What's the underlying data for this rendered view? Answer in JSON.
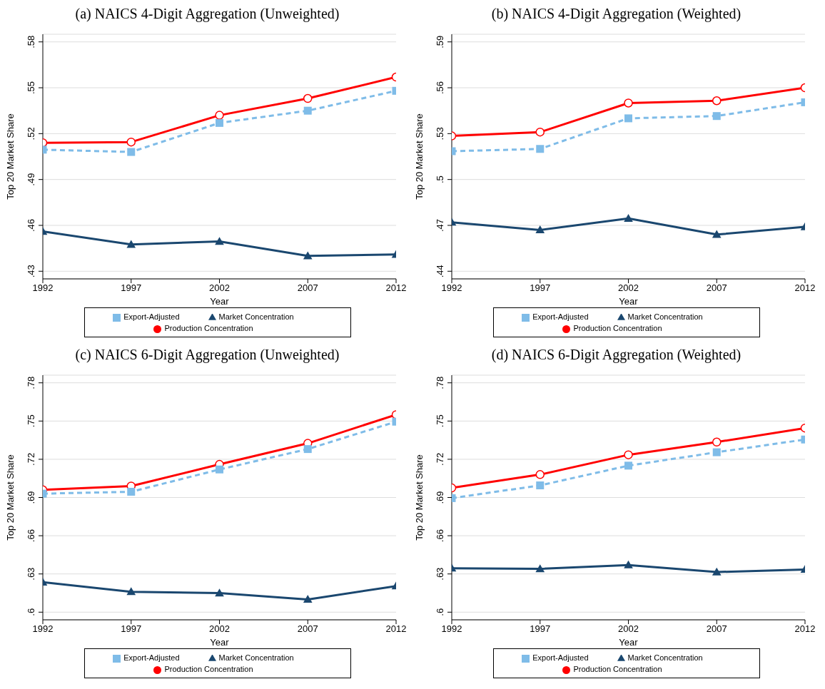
{
  "chart_data": [
    {
      "type": "line",
      "title": "(a) NAICS 4-Digit Aggregation (Unweighted)",
      "xlabel": "Year",
      "ylabel": "Top 20 Market Share",
      "x": [
        1992,
        1997,
        2002,
        2007,
        2012
      ],
      "xlim": [
        1992,
        2012
      ],
      "xticks": [
        1992,
        1997,
        2002,
        2007,
        2012
      ],
      "ylim": [
        0.425,
        0.585
      ],
      "yticks": [
        {
          "value": 0.43,
          "label": ".43"
        },
        {
          "value": 0.46,
          "label": ".46"
        },
        {
          "value": 0.49,
          "label": ".49"
        },
        {
          "value": 0.52,
          "label": ".52"
        },
        {
          "value": 0.55,
          "label": ".55"
        },
        {
          "value": 0.58,
          "label": ".58"
        }
      ],
      "grid": "y",
      "legend": "bottom",
      "series": [
        {
          "name": "Production Concentration",
          "color": "#ff0000",
          "marker": "circle",
          "line_style": "solid",
          "values": [
            0.514,
            0.5145,
            0.532,
            0.543,
            0.557
          ]
        },
        {
          "name": "Export-Adjusted",
          "color": "#7fbce8",
          "marker": "square",
          "line_style": "dashed",
          "values": [
            0.5095,
            0.508,
            0.527,
            0.535,
            0.548
          ]
        },
        {
          "name": "Market Concentration",
          "color": "#1a476f",
          "marker": "triangle",
          "line_style": "solid",
          "values": [
            0.456,
            0.4475,
            0.4495,
            0.44,
            0.441
          ]
        }
      ]
    },
    {
      "type": "line",
      "title": "(b) NAICS 4-Digit Aggregation (Weighted)",
      "xlabel": "Year",
      "ylabel": "Top 20 Market Share",
      "x": [
        1992,
        1997,
        2002,
        2007,
        2012
      ],
      "xlim": [
        1992,
        2012
      ],
      "xticks": [
        1992,
        1997,
        2002,
        2007,
        2012
      ],
      "ylim": [
        0.435,
        0.595
      ],
      "yticks": [
        {
          "value": 0.44,
          "label": ".44"
        },
        {
          "value": 0.47,
          "label": ".47"
        },
        {
          "value": 0.5,
          "label": ".5"
        },
        {
          "value": 0.53,
          "label": ".53"
        },
        {
          "value": 0.56,
          "label": ".56"
        },
        {
          "value": 0.59,
          "label": ".59"
        }
      ],
      "grid": "y",
      "legend": "bottom",
      "series": [
        {
          "name": "Production Concentration",
          "color": "#ff0000",
          "marker": "circle",
          "line_style": "solid",
          "values": [
            0.5285,
            0.531,
            0.55,
            0.5515,
            0.56
          ]
        },
        {
          "name": "Export-Adjusted",
          "color": "#7fbce8",
          "marker": "square",
          "line_style": "dashed",
          "values": [
            0.5185,
            0.52,
            0.54,
            0.5415,
            0.5505
          ]
        },
        {
          "name": "Market Concentration",
          "color": "#1a476f",
          "marker": "triangle",
          "line_style": "solid",
          "values": [
            0.472,
            0.467,
            0.4745,
            0.464,
            0.469
          ]
        }
      ]
    },
    {
      "type": "line",
      "title": "(c) NAICS 6-Digit Aggregation (Unweighted)",
      "xlabel": "Year",
      "ylabel": "Top 20 Market Share",
      "x": [
        1992,
        1997,
        2002,
        2007,
        2012
      ],
      "xlim": [
        1992,
        2012
      ],
      "xticks": [
        1992,
        1997,
        2002,
        2007,
        2012
      ],
      "ylim": [
        0.594,
        0.786
      ],
      "yticks": [
        {
          "value": 0.6,
          "label": ".6"
        },
        {
          "value": 0.63,
          "label": ".63"
        },
        {
          "value": 0.66,
          "label": ".66"
        },
        {
          "value": 0.69,
          "label": ".69"
        },
        {
          "value": 0.72,
          "label": ".72"
        },
        {
          "value": 0.75,
          "label": ".75"
        },
        {
          "value": 0.78,
          "label": ".78"
        }
      ],
      "grid": "y",
      "legend": "bottom",
      "series": [
        {
          "name": "Production Concentration",
          "color": "#ff0000",
          "marker": "circle",
          "line_style": "solid",
          "values": [
            0.696,
            0.699,
            0.716,
            0.7325,
            0.755
          ]
        },
        {
          "name": "Export-Adjusted",
          "color": "#7fbce8",
          "marker": "square",
          "line_style": "dashed",
          "values": [
            0.693,
            0.6945,
            0.712,
            0.728,
            0.7495
          ]
        },
        {
          "name": "Market Concentration",
          "color": "#1a476f",
          "marker": "triangle",
          "line_style": "solid",
          "values": [
            0.6235,
            0.616,
            0.615,
            0.61,
            0.6205
          ]
        }
      ]
    },
    {
      "type": "line",
      "title": "(d) NAICS 6-Digit Aggregation (Weighted)",
      "xlabel": "Year",
      "ylabel": "Top 20 Market Share",
      "x": [
        1992,
        1997,
        2002,
        2007,
        2012
      ],
      "xlim": [
        1992,
        2012
      ],
      "xticks": [
        1992,
        1997,
        2002,
        2007,
        2012
      ],
      "ylim": [
        0.594,
        0.786
      ],
      "yticks": [
        {
          "value": 0.6,
          "label": ".6"
        },
        {
          "value": 0.63,
          "label": ".63"
        },
        {
          "value": 0.66,
          "label": ".66"
        },
        {
          "value": 0.69,
          "label": ".69"
        },
        {
          "value": 0.72,
          "label": ".72"
        },
        {
          "value": 0.75,
          "label": ".75"
        },
        {
          "value": 0.78,
          "label": ".78"
        }
      ],
      "grid": "y",
      "legend": "bottom",
      "series": [
        {
          "name": "Production Concentration",
          "color": "#ff0000",
          "marker": "circle",
          "line_style": "solid",
          "values": [
            0.6975,
            0.708,
            0.7235,
            0.7335,
            0.7445
          ]
        },
        {
          "name": "Export-Adjusted",
          "color": "#7fbce8",
          "marker": "square",
          "line_style": "dashed",
          "values": [
            0.6895,
            0.6995,
            0.715,
            0.7255,
            0.7355
          ]
        },
        {
          "name": "Market Concentration",
          "color": "#1a476f",
          "marker": "triangle",
          "line_style": "solid",
          "values": [
            0.6345,
            0.634,
            0.637,
            0.6315,
            0.6335
          ]
        }
      ]
    }
  ]
}
